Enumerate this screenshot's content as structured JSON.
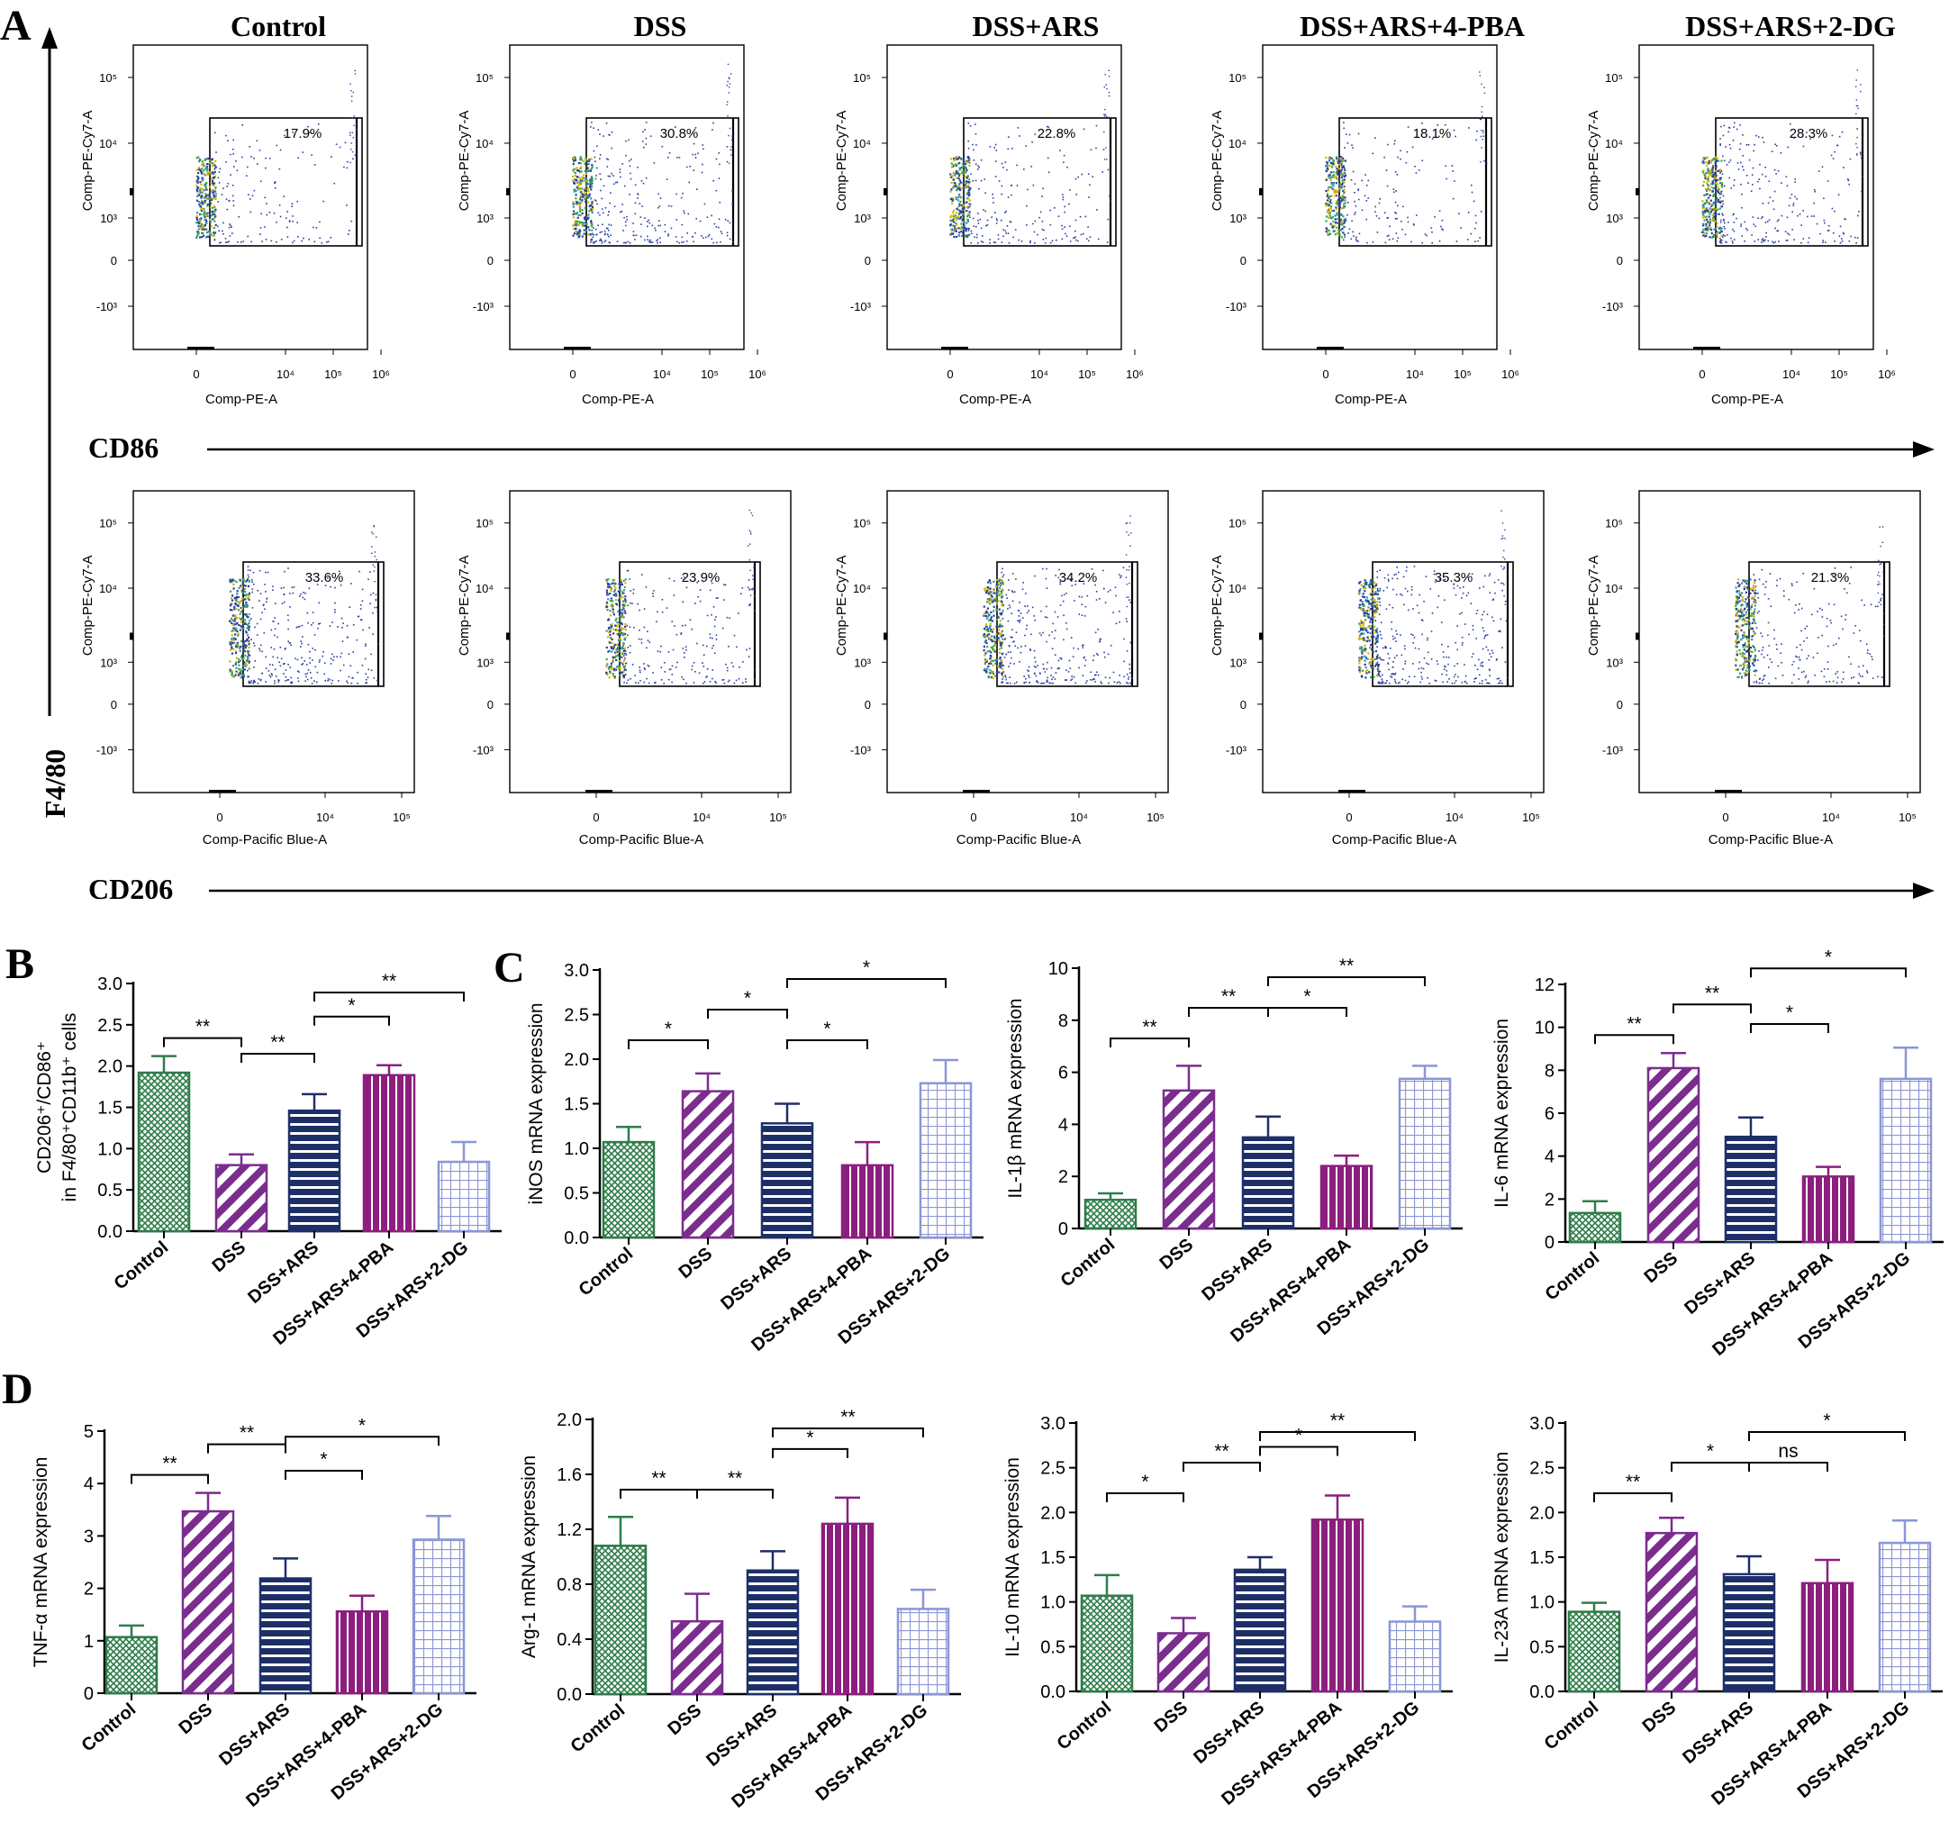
{
  "figure": {
    "panel_labels": [
      "A",
      "B",
      "C",
      "D"
    ],
    "groups": [
      "Control",
      "DSS",
      "DSS+ARS",
      "DSS+ARS+4-PBA",
      "DSS+ARS+2-DG"
    ],
    "colors": {
      "Control": "#2e7d4a",
      "DSS": "#7b2d8e",
      "DSS+ARS": "#1e2f68",
      "DSS+ARS+4-PBA": "#8c1f7e",
      "DSS+ARS+2-DG": "#8a96d6"
    },
    "patterns": [
      "crosshatch",
      "diagonal",
      "horizontal",
      "vertical",
      "grid"
    ],
    "flow": {
      "column_titles": [
        "Control",
        "DSS",
        "DSS+ARS",
        "DSS+ARS+4-PBA",
        "DSS+ARS+2-DG"
      ],
      "y_marker": "F4/80",
      "rows": [
        {
          "marker": "CD86",
          "x_axis_label": "Comp-PE-A",
          "y_axis_label": "Comp-PE-Cy7-A",
          "x_ticks": [
            "0",
            "10⁴",
            "10⁵",
            "10⁶"
          ],
          "y_ticks": [
            "10⁵",
            "10⁴",
            "10³",
            "0",
            "-10³"
          ],
          "percentages": [
            "17.9%",
            "30.8%",
            "22.8%",
            "18.1%",
            "28.3%"
          ]
        },
        {
          "marker": "CD206",
          "x_axis_label": "Comp-Pacific Blue-A",
          "y_axis_label": "Comp-PE-Cy7-A",
          "x_ticks": [
            "0",
            "10⁴",
            "10⁵"
          ],
          "y_ticks": [
            "10⁵",
            "10⁴",
            "10³",
            "0",
            "-10³"
          ],
          "percentages": [
            "33.6%",
            "23.9%",
            "34.2%",
            "35.3%",
            "21.3%"
          ]
        }
      ]
    }
  },
  "chart_data": [
    {
      "id": "B",
      "type": "bar",
      "ylabel_line1": "CD206⁺/CD86⁺",
      "ylabel_line2": "in F4/80⁺CD11b⁺ cells",
      "categories": [
        "Control",
        "DSS",
        "DSS+ARS",
        "DSS+ARS+4-PBA",
        "DSS+ARS+2-DG"
      ],
      "values": [
        1.92,
        0.8,
        1.46,
        1.89,
        0.84
      ],
      "errors": [
        0.2,
        0.13,
        0.2,
        0.12,
        0.24
      ],
      "ylim": [
        0,
        3.0
      ],
      "yticks": [
        0.0,
        0.5,
        1.0,
        1.5,
        2.0,
        2.5,
        3.0
      ],
      "tick_decimals": 1,
      "comparisons": [
        {
          "from": 0,
          "to": 1,
          "label": "**",
          "level": 0
        },
        {
          "from": 1,
          "to": 2,
          "label": "**",
          "level": 0
        },
        {
          "from": 2,
          "to": 3,
          "label": "*",
          "level": 1
        },
        {
          "from": 2,
          "to": 4,
          "label": "**",
          "level": 2
        }
      ]
    },
    {
      "id": "C1",
      "type": "bar",
      "ylabel": "iNOS mRNA expression",
      "categories": [
        "Control",
        "DSS",
        "DSS+ARS",
        "DSS+ARS+4-PBA",
        "DSS+ARS+2-DG"
      ],
      "values": [
        1.07,
        1.64,
        1.28,
        0.81,
        1.73
      ],
      "errors": [
        0.17,
        0.2,
        0.22,
        0.26,
        0.26
      ],
      "ylim": [
        0,
        3.0
      ],
      "yticks": [
        0.0,
        0.5,
        1.0,
        1.5,
        2.0,
        2.5,
        3.0
      ],
      "tick_decimals": 1,
      "comparisons": [
        {
          "from": 0,
          "to": 1,
          "label": "*",
          "level": 0
        },
        {
          "from": 1,
          "to": 2,
          "label": "*",
          "level": 1
        },
        {
          "from": 2,
          "to": 3,
          "label": "*",
          "level": 0
        },
        {
          "from": 2,
          "to": 4,
          "label": "*",
          "level": 2
        }
      ]
    },
    {
      "id": "C2",
      "type": "bar",
      "ylabel": "IL-1β mRNA expression",
      "categories": [
        "Control",
        "DSS",
        "DSS+ARS",
        "DSS+ARS+4-PBA",
        "DSS+ARS+2-DG"
      ],
      "values": [
        1.1,
        5.3,
        3.5,
        2.4,
        5.75
      ],
      "errors": [
        0.25,
        0.95,
        0.8,
        0.4,
        0.5
      ],
      "ylim": [
        0,
        10
      ],
      "yticks": [
        0,
        2,
        4,
        6,
        8,
        10
      ],
      "tick_decimals": 0,
      "comparisons": [
        {
          "from": 0,
          "to": 1,
          "label": "**",
          "level": 0
        },
        {
          "from": 1,
          "to": 2,
          "label": "**",
          "level": 1
        },
        {
          "from": 2,
          "to": 3,
          "label": "*",
          "level": 1
        },
        {
          "from": 2,
          "to": 4,
          "label": "**",
          "level": 2
        }
      ]
    },
    {
      "id": "C3",
      "type": "bar",
      "ylabel": "IL-6 mRNA expression",
      "categories": [
        "Control",
        "DSS",
        "DSS+ARS",
        "DSS+ARS+4-PBA",
        "DSS+ARS+2-DG"
      ],
      "values": [
        1.35,
        8.1,
        4.9,
        3.05,
        7.6
      ],
      "errors": [
        0.55,
        0.7,
        0.9,
        0.45,
        1.45
      ],
      "ylim": [
        0,
        12
      ],
      "yticks": [
        0,
        2,
        4,
        6,
        8,
        10,
        12
      ],
      "tick_decimals": 0,
      "comparisons": [
        {
          "from": 0,
          "to": 1,
          "label": "**",
          "level": 0
        },
        {
          "from": 1,
          "to": 2,
          "label": "**",
          "level": 1
        },
        {
          "from": 2,
          "to": 3,
          "label": "*",
          "level": 1
        },
        {
          "from": 2,
          "to": 4,
          "label": "*",
          "level": 2
        }
      ]
    },
    {
      "id": "D1",
      "type": "bar",
      "ylabel": "TNF-α mRNA expression",
      "categories": [
        "Control",
        "DSS",
        "DSS+ARS",
        "DSS+ARS+4-PBA",
        "DSS+ARS+2-DG"
      ],
      "values": [
        1.07,
        3.47,
        2.19,
        1.56,
        2.93
      ],
      "errors": [
        0.22,
        0.35,
        0.38,
        0.3,
        0.45
      ],
      "ylim": [
        0,
        5
      ],
      "yticks": [
        0,
        1,
        2,
        3,
        4,
        5
      ],
      "tick_decimals": 0,
      "comparisons": [
        {
          "from": 0,
          "to": 1,
          "label": "**",
          "level": 0
        },
        {
          "from": 1,
          "to": 2,
          "label": "**",
          "level": 1
        },
        {
          "from": 2,
          "to": 3,
          "label": "*",
          "level": 1
        },
        {
          "from": 2,
          "to": 4,
          "label": "*",
          "level": 2
        }
      ]
    },
    {
      "id": "D2",
      "type": "bar",
      "ylabel": "Arg-1 mRNA expression",
      "categories": [
        "Control",
        "DSS",
        "DSS+ARS",
        "DSS+ARS+4-PBA",
        "DSS+ARS+2-DG"
      ],
      "values": [
        1.08,
        0.53,
        0.9,
        1.24,
        0.62
      ],
      "errors": [
        0.21,
        0.2,
        0.14,
        0.19,
        0.14
      ],
      "ylim": [
        0,
        2.0
      ],
      "yticks": [
        0.0,
        0.4,
        0.8,
        1.2,
        1.6,
        2.0
      ],
      "tick_decimals": 1,
      "comparisons": [
        {
          "from": 0,
          "to": 1,
          "label": "**",
          "level": 0
        },
        {
          "from": 1,
          "to": 2,
          "label": "**",
          "level": 0
        },
        {
          "from": 2,
          "to": 3,
          "label": "*",
          "level": 1
        },
        {
          "from": 2,
          "to": 4,
          "label": "**",
          "level": 2
        }
      ]
    },
    {
      "id": "D3",
      "type": "bar",
      "ylabel": "IL-10 mRNA expression",
      "categories": [
        "Control",
        "DSS",
        "DSS+ARS",
        "DSS+ARS+4-PBA",
        "DSS+ARS+2-DG"
      ],
      "values": [
        1.07,
        0.65,
        1.36,
        1.92,
        0.78
      ],
      "errors": [
        0.23,
        0.17,
        0.14,
        0.27,
        0.17
      ],
      "ylim": [
        0,
        3.0
      ],
      "yticks": [
        0.0,
        0.5,
        1.0,
        1.5,
        2.0,
        2.5,
        3.0
      ],
      "tick_decimals": 1,
      "comparisons": [
        {
          "from": 0,
          "to": 1,
          "label": "*",
          "level": 0
        },
        {
          "from": 1,
          "to": 2,
          "label": "**",
          "level": 1
        },
        {
          "from": 2,
          "to": 3,
          "label": "*",
          "level": 1
        },
        {
          "from": 2,
          "to": 4,
          "label": "**",
          "level": 2
        }
      ]
    },
    {
      "id": "D4",
      "type": "bar",
      "ylabel": "IL-23A mRNA expression",
      "categories": [
        "Control",
        "DSS",
        "DSS+ARS",
        "DSS+ARS+4-PBA",
        "DSS+ARS+2-DG"
      ],
      "values": [
        0.89,
        1.77,
        1.31,
        1.21,
        1.66
      ],
      "errors": [
        0.1,
        0.17,
        0.2,
        0.26,
        0.25
      ],
      "ylim": [
        0,
        3.0
      ],
      "yticks": [
        0.0,
        0.5,
        1.0,
        1.5,
        2.0,
        2.5,
        3.0
      ],
      "tick_decimals": 1,
      "comparisons": [
        {
          "from": 0,
          "to": 1,
          "label": "**",
          "level": 0
        },
        {
          "from": 1,
          "to": 2,
          "label": "*",
          "level": 1
        },
        {
          "from": 2,
          "to": 3,
          "label": "ns",
          "level": 1
        },
        {
          "from": 2,
          "to": 4,
          "label": "*",
          "level": 2
        }
      ]
    }
  ]
}
